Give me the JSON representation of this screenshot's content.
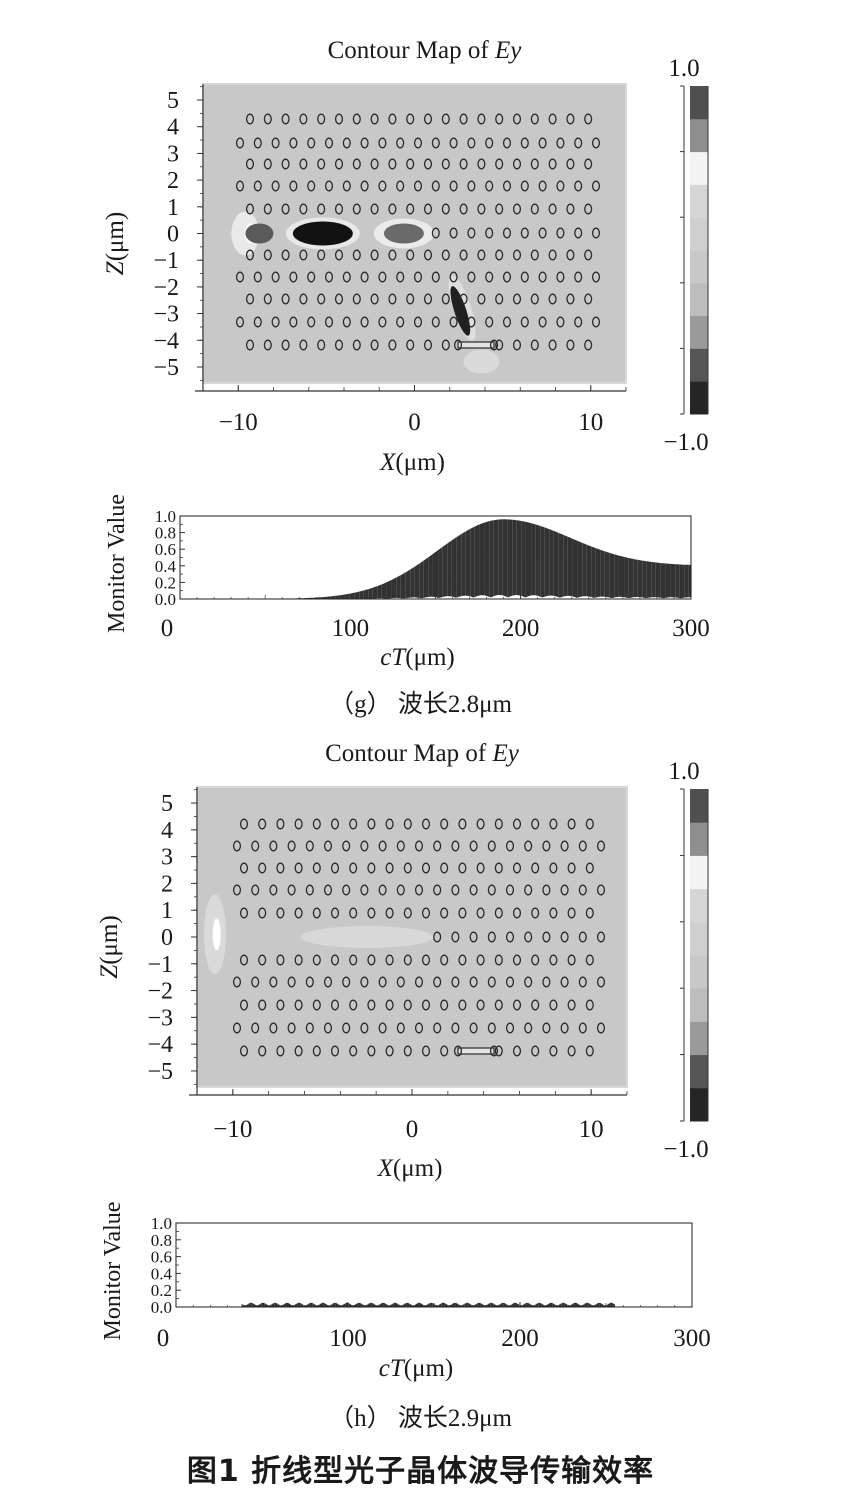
{
  "figure_caption": "图1  折线型光子晶体波导传输效率",
  "panels": [
    {
      "caption": "（g） 波长2.8μm",
      "contour": {
        "title_prefix": "Contour Map of ",
        "title_var": "Ey",
        "xlabel_var": "X",
        "xlabel_unit": "(μm)",
        "ylabel_var": "Z",
        "ylabel_unit": "(μm)",
        "colorbar_max": "1.0",
        "colorbar_min": "−1.0"
      },
      "monitor": {
        "ylabel": "Monitor Value",
        "xlabel_var": "cT",
        "xlabel_unit": "(μm)"
      }
    },
    {
      "caption": "（h） 波长2.9μm",
      "contour": {
        "title_prefix": "Contour Map of ",
        "title_var": "Ey",
        "xlabel_var": "X",
        "xlabel_unit": "(μm)",
        "ylabel_var": "Z",
        "ylabel_unit": "(μm)",
        "colorbar_max": "1.0",
        "colorbar_min": "−1.0"
      },
      "monitor": {
        "ylabel": "Monitor Value",
        "xlabel_var": "cT",
        "xlabel_unit": "(μm)"
      }
    }
  ],
  "chart_data": [
    {
      "type": "heatmap",
      "title": "Contour Map of Ey",
      "xlabel": "X(μm)",
      "ylabel": "Z(μm)",
      "xlim": [
        -12,
        12
      ],
      "ylim": [
        -5.6,
        5.6
      ],
      "xticks": [
        -10,
        0,
        10
      ],
      "yticks": [
        5,
        4,
        3,
        2,
        1,
        0,
        -1,
        -2,
        -3,
        -4,
        -5
      ],
      "colorbar": {
        "min": -1.0,
        "max": 1.0,
        "levels": 10
      },
      "rods": {
        "rows": [
          4.5,
          3.5,
          2.5,
          1.5,
          0.5,
          -0.5,
          -1.5,
          -2.5,
          -3.5,
          -4.5
        ],
        "x_from": -9.5,
        "x_to": 10.5,
        "x_step": 1.0,
        "stagger_rows": [
          4,
          2,
          0.5,
          -1.5,
          -3.5
        ]
      },
      "source_bar": {
        "x": [
          2.5,
          4.5
        ],
        "z": -4.6
      }
    },
    {
      "type": "line",
      "xlabel": "cT(μm)",
      "ylabel": "Monitor Value",
      "xlim": [
        0,
        300
      ],
      "ylim": [
        0,
        1.0
      ],
      "xticks": [
        0,
        100,
        200,
        300
      ],
      "yticks": [
        0,
        0.2,
        0.4,
        0.6,
        0.8,
        1.0
      ],
      "envelope": {
        "center": 190,
        "width": 55,
        "peak": 0.96,
        "tail": 0.4,
        "onset": 30
      }
    },
    {
      "type": "heatmap",
      "title": "Contour Map of Ey",
      "xlabel": "X(μm)",
      "ylabel": "Z(μm)",
      "xlim": [
        -12,
        12
      ],
      "ylim": [
        -5.6,
        5.6
      ],
      "xticks": [
        -10,
        0,
        10
      ],
      "yticks": [
        5,
        4,
        3,
        2,
        1,
        0,
        -1,
        -2,
        -3,
        -4,
        -5
      ],
      "colorbar": {
        "min": -1.0,
        "max": 1.0,
        "levels": 10
      }
    },
    {
      "type": "line",
      "xlabel": "cT(μm)",
      "ylabel": "Monitor Value",
      "xlim": [
        0,
        300
      ],
      "ylim": [
        0,
        1.0
      ],
      "xticks": [
        0,
        100,
        200,
        300
      ],
      "yticks": [
        0,
        0.2,
        0.4,
        0.6,
        0.8,
        1.0
      ],
      "envelope": {
        "level": 0.05,
        "onset": 38,
        "end": 255
      }
    }
  ]
}
